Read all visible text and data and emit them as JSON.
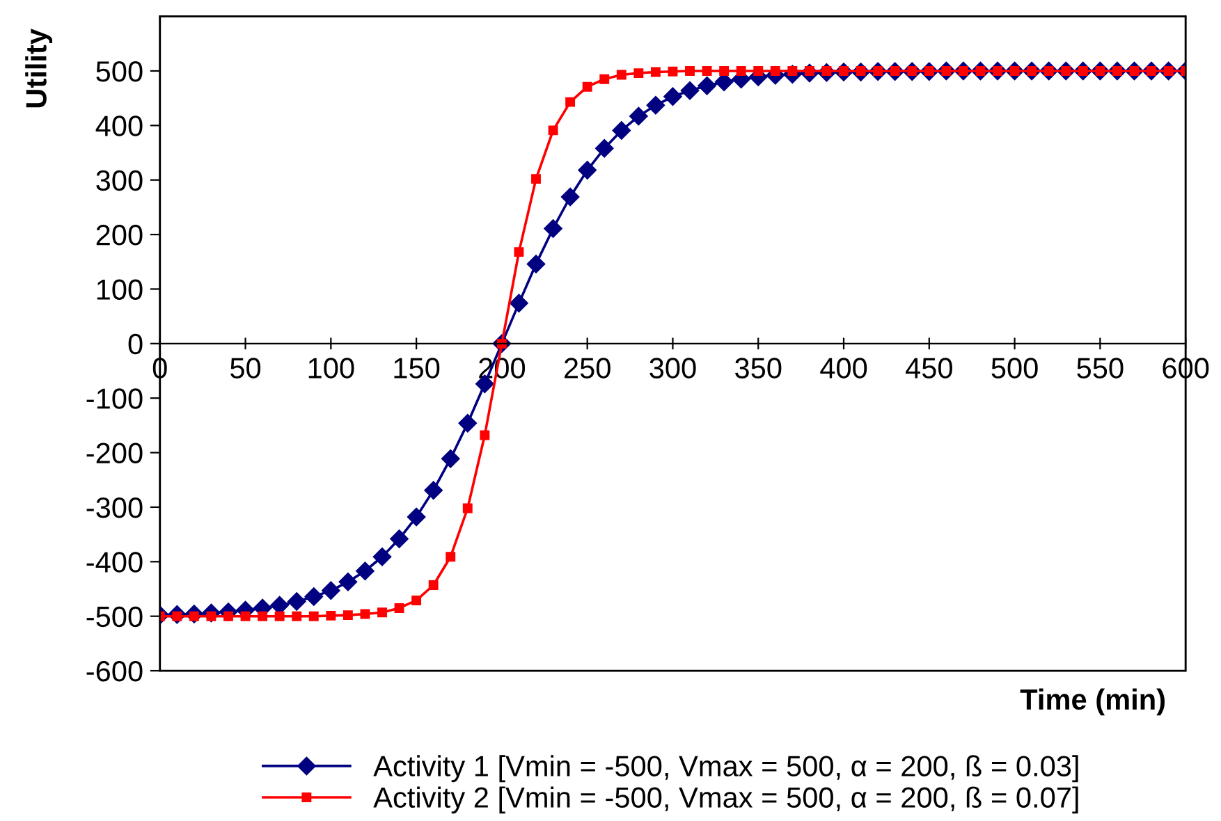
{
  "chart_data": {
    "type": "line",
    "xlabel": "Time (min)",
    "ylabel": "Utility",
    "x": [
      0,
      10,
      20,
      30,
      40,
      50,
      60,
      70,
      80,
      90,
      100,
      110,
      120,
      130,
      140,
      150,
      160,
      170,
      180,
      190,
      200,
      210,
      220,
      230,
      240,
      250,
      260,
      270,
      280,
      290,
      300,
      310,
      320,
      330,
      340,
      350,
      360,
      370,
      380,
      390,
      400,
      410,
      420,
      430,
      440,
      450,
      460,
      470,
      480,
      490,
      500,
      510,
      520,
      530,
      540,
      550,
      560,
      570,
      580,
      590,
      600
    ],
    "series": [
      {
        "name": "Activity 1 [Vmin = -500, Vmax = 500, α = 200, ß = 0.03]",
        "color": "#000080",
        "marker": "diamond",
        "values": [
          -498,
          -497,
          -496,
          -494,
          -492,
          -489,
          -485,
          -480,
          -473,
          -464,
          -453,
          -437,
          -417,
          -391,
          -358,
          -318,
          -269,
          -211,
          -146,
          -74,
          0,
          74,
          146,
          211,
          269,
          318,
          358,
          391,
          417,
          437,
          453,
          464,
          473,
          480,
          485,
          489,
          492,
          494,
          496,
          497,
          498,
          498,
          499,
          499,
          499,
          499,
          500,
          500,
          500,
          500,
          500,
          500,
          500,
          500,
          500,
          500,
          500,
          500,
          500,
          500,
          500
        ]
      },
      {
        "name": "Activity 2 [Vmin = -500, Vmax = 500, α = 200, ß = 0.07]",
        "color": "#ff0000",
        "marker": "square",
        "values": [
          -500,
          -500,
          -500,
          -500,
          -500,
          -500,
          -500,
          -500,
          -500,
          -500,
          -499,
          -498,
          -496,
          -493,
          -485,
          -471,
          -443,
          -391,
          -302,
          -168,
          0,
          168,
          302,
          391,
          443,
          471,
          485,
          493,
          496,
          498,
          499,
          500,
          500,
          500,
          500,
          500,
          500,
          500,
          500,
          500,
          500,
          500,
          500,
          500,
          500,
          500,
          500,
          500,
          500,
          500,
          500,
          500,
          500,
          500,
          500,
          500,
          500,
          500,
          500,
          500,
          500
        ]
      }
    ],
    "xlim": [
      0,
      600
    ],
    "xticks": [
      0,
      50,
      100,
      150,
      200,
      250,
      300,
      350,
      400,
      450,
      500,
      550,
      600
    ],
    "ylim": [
      -600,
      600
    ],
    "yticks": [
      -600,
      -500,
      -400,
      -300,
      -200,
      -100,
      0,
      100,
      200,
      300,
      400,
      500
    ],
    "grid": false,
    "legend": "bottom",
    "line_style": "solid"
  }
}
